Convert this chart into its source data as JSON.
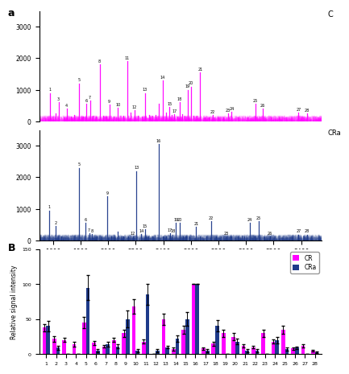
{
  "magenta_color": "#FF00FF",
  "blue_color": "#1E3A8A",
  "xmin": 1500,
  "xmax": 3550,
  "xticks": [
    1600,
    1800,
    2000,
    2200,
    2400,
    2600,
    2800,
    3000,
    3200,
    3400
  ],
  "ms_ylim1": [
    0,
    3500
  ],
  "ms_ylim2": [
    0,
    3500
  ],
  "ms_yticks": [
    0,
    1000,
    2000,
    3000
  ],
  "peaks_m": [
    [
      1578,
      900,
      "1"
    ],
    [
      1618,
      250,
      ""
    ],
    [
      1640,
      600,
      "3"
    ],
    [
      1675,
      130,
      ""
    ],
    [
      1700,
      400,
      "4"
    ],
    [
      1730,
      150,
      ""
    ],
    [
      1755,
      200,
      ""
    ],
    [
      1790,
      1200,
      "5"
    ],
    [
      1820,
      160,
      ""
    ],
    [
      1840,
      550,
      "6"
    ],
    [
      1868,
      650,
      "7"
    ],
    [
      1888,
      180,
      ""
    ],
    [
      1910,
      150,
      ""
    ],
    [
      1938,
      1800,
      "8"
    ],
    [
      1962,
      180,
      ""
    ],
    [
      1985,
      150,
      ""
    ],
    [
      2008,
      520,
      "9"
    ],
    [
      2040,
      150,
      ""
    ],
    [
      2072,
      420,
      "10"
    ],
    [
      2110,
      180,
      ""
    ],
    [
      2138,
      1900,
      "11"
    ],
    [
      2165,
      280,
      ""
    ],
    [
      2192,
      350,
      "12"
    ],
    [
      2218,
      180,
      ""
    ],
    [
      2242,
      160,
      ""
    ],
    [
      2268,
      900,
      "13"
    ],
    [
      2295,
      200,
      ""
    ],
    [
      2318,
      180,
      ""
    ],
    [
      2342,
      200,
      ""
    ],
    [
      2368,
      550,
      ""
    ],
    [
      2395,
      1300,
      "14"
    ],
    [
      2420,
      280,
      ""
    ],
    [
      2445,
      450,
      "15"
    ],
    [
      2462,
      200,
      ""
    ],
    [
      2480,
      220,
      "17"
    ],
    [
      2500,
      160,
      ""
    ],
    [
      2518,
      600,
      "18"
    ],
    [
      2538,
      220,
      ""
    ],
    [
      2555,
      180,
      ""
    ],
    [
      2578,
      1000,
      "19"
    ],
    [
      2600,
      1100,
      "20"
    ],
    [
      2620,
      180,
      ""
    ],
    [
      2640,
      180,
      ""
    ],
    [
      2668,
      1550,
      "21"
    ],
    [
      2700,
      120,
      ""
    ],
    [
      2730,
      120,
      ""
    ],
    [
      2760,
      200,
      "22"
    ],
    [
      2800,
      120,
      ""
    ],
    [
      2835,
      120,
      ""
    ],
    [
      2868,
      250,
      "23"
    ],
    [
      2895,
      300,
      "24"
    ],
    [
      2938,
      120,
      ""
    ],
    [
      3010,
      120,
      ""
    ],
    [
      3068,
      550,
      "25"
    ],
    [
      3120,
      400,
      "26"
    ],
    [
      3180,
      120,
      ""
    ],
    [
      3380,
      280,
      "27"
    ],
    [
      3440,
      240,
      "28"
    ]
  ],
  "peaks_b": [
    [
      1575,
      950,
      "1"
    ],
    [
      1620,
      450,
      "2"
    ],
    [
      1660,
      120,
      ""
    ],
    [
      1790,
      2300,
      "5"
    ],
    [
      1835,
      550,
      "6"
    ],
    [
      1862,
      220,
      "7"
    ],
    [
      1885,
      200,
      "8"
    ],
    [
      1920,
      120,
      ""
    ],
    [
      1955,
      120,
      ""
    ],
    [
      1992,
      1400,
      "9"
    ],
    [
      2025,
      120,
      ""
    ],
    [
      2068,
      280,
      ""
    ],
    [
      2108,
      120,
      ""
    ],
    [
      2145,
      120,
      ""
    ],
    [
      2180,
      120,
      "12"
    ],
    [
      2205,
      2200,
      "13"
    ],
    [
      2240,
      200,
      "14"
    ],
    [
      2268,
      350,
      "15"
    ],
    [
      2290,
      120,
      ""
    ],
    [
      2318,
      120,
      ""
    ],
    [
      2368,
      3050,
      "16"
    ],
    [
      2395,
      120,
      ""
    ],
    [
      2420,
      120,
      ""
    ],
    [
      2448,
      220,
      "17"
    ],
    [
      2468,
      180,
      "18"
    ],
    [
      2492,
      550,
      "19"
    ],
    [
      2518,
      550,
      "20"
    ],
    [
      2545,
      120,
      ""
    ],
    [
      2568,
      120,
      ""
    ],
    [
      2592,
      120,
      ""
    ],
    [
      2638,
      420,
      "21"
    ],
    [
      2668,
      120,
      ""
    ],
    [
      2710,
      120,
      ""
    ],
    [
      2748,
      600,
      "22"
    ],
    [
      2785,
      120,
      ""
    ],
    [
      2820,
      120,
      ""
    ],
    [
      2858,
      120,
      "23"
    ],
    [
      2895,
      120,
      ""
    ],
    [
      2938,
      120,
      ""
    ],
    [
      2985,
      120,
      ""
    ],
    [
      3028,
      550,
      "24"
    ],
    [
      3060,
      120,
      ""
    ],
    [
      3092,
      600,
      "25"
    ],
    [
      3130,
      120,
      ""
    ],
    [
      3175,
      120,
      "26"
    ],
    [
      3380,
      180,
      "27"
    ],
    [
      3440,
      180,
      "28"
    ]
  ],
  "bar_categories": [
    1,
    2,
    3,
    4,
    5,
    6,
    7,
    8,
    9,
    10,
    11,
    12,
    13,
    14,
    15,
    16,
    17,
    18,
    19,
    20,
    21,
    22,
    23,
    24,
    25,
    26,
    27,
    28
  ],
  "bar_magenta_vals": [
    38,
    22,
    20,
    14,
    45,
    16,
    11,
    20,
    30,
    68,
    18,
    0,
    50,
    7,
    35,
    100,
    8,
    15,
    30,
    25,
    12,
    10,
    30,
    18,
    35,
    8,
    12,
    5
  ],
  "bar_blue_vals": [
    40,
    9,
    0,
    0,
    95,
    5,
    14,
    11,
    50,
    5,
    85,
    5,
    10,
    22,
    50,
    100,
    5,
    40,
    0,
    18,
    5,
    5,
    0,
    20,
    7,
    9,
    0,
    3
  ],
  "bar_magenta_err": [
    5,
    4,
    3,
    3,
    8,
    3,
    2,
    3,
    5,
    10,
    3,
    0,
    8,
    2,
    6,
    0,
    2,
    3,
    5,
    5,
    2,
    2,
    5,
    3,
    6,
    2,
    2,
    1
  ],
  "bar_blue_err": [
    7,
    3,
    0,
    0,
    18,
    2,
    3,
    3,
    12,
    2,
    15,
    2,
    2,
    5,
    10,
    0,
    2,
    8,
    0,
    4,
    2,
    2,
    0,
    5,
    2,
    2,
    0,
    1
  ],
  "bar_ylabel": "Relative signal intensity",
  "bar_ylim": [
    0,
    150
  ],
  "bar_yticks": [
    0,
    50,
    100,
    150
  ]
}
